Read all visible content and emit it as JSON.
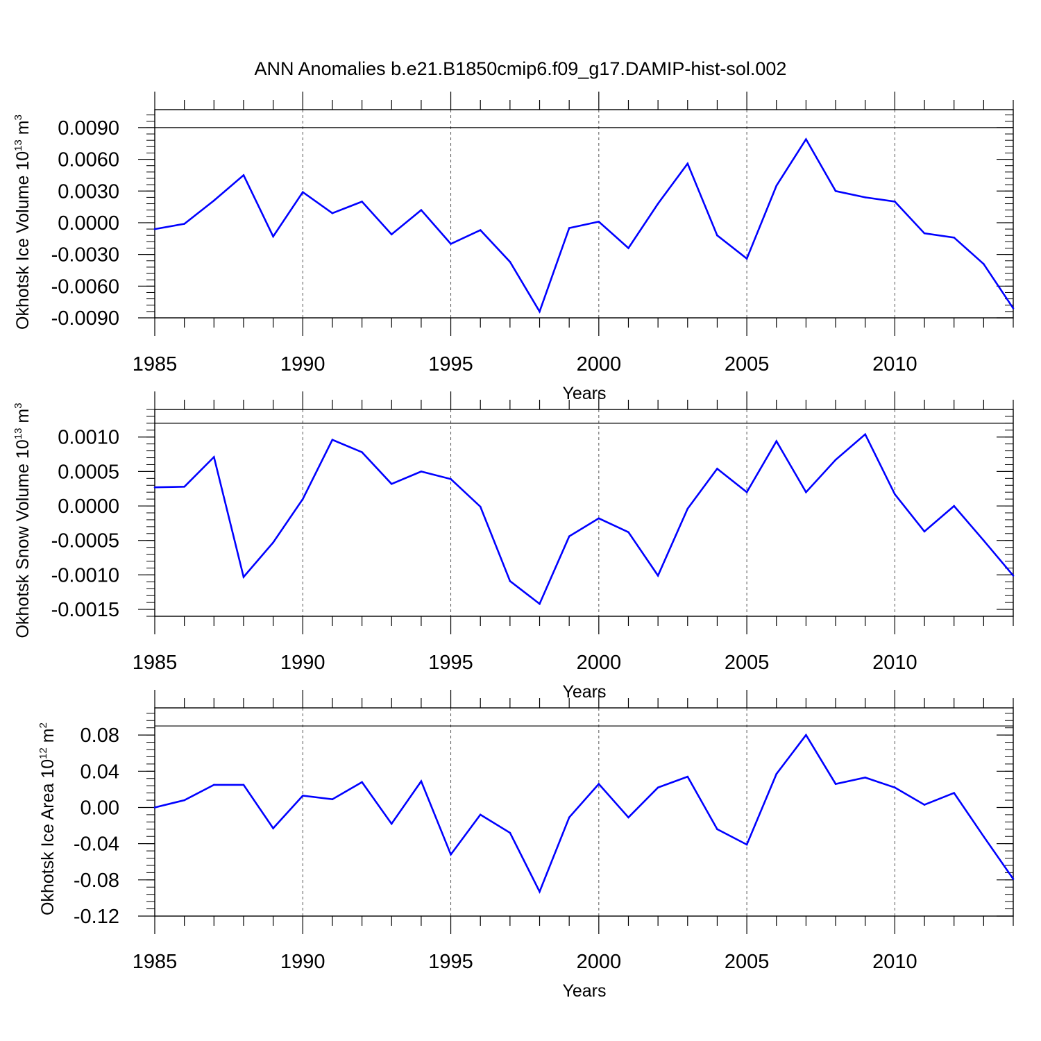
{
  "title": "ANN Anomalies b.e21.B1850cmip6.f09_g17.DAMIP-hist-sol.002",
  "line_color": "#0000ff",
  "chart_data": [
    {
      "type": "line",
      "ylabel": {
        "base": "Okhotsk Ice Volume 10",
        "sup": "13",
        "mid": " m",
        "sup2": "3"
      },
      "xlabel": "Years",
      "xlim": [
        1985,
        2014
      ],
      "ylim": [
        -0.009,
        0.0107
      ],
      "yticks": [
        -0.009,
        -0.006,
        -0.003,
        0.0,
        0.003,
        0.006,
        0.009
      ],
      "ytick_labels": [
        "-0.0090",
        "-0.0060",
        "-0.0030",
        "0.0000",
        "0.0030",
        "0.0060",
        "0.0090"
      ],
      "yminor_step": 0.0006,
      "xticks": [
        1985,
        1990,
        1995,
        2000,
        2005,
        2010
      ],
      "xtick_labels": [
        "1985",
        "1990",
        "1995",
        "2000",
        "2005",
        "2010"
      ],
      "vgrid": [
        1990,
        1995,
        2000,
        2005,
        2010
      ],
      "hgrid": [
        0.009
      ],
      "x": [
        1985,
        1986,
        1987,
        1988,
        1989,
        1990,
        1991,
        1992,
        1993,
        1994,
        1995,
        1996,
        1997,
        1998,
        1999,
        2000,
        2001,
        2002,
        2003,
        2004,
        2005,
        2006,
        2007,
        2008,
        2009,
        2010,
        2011,
        2012,
        2013,
        2014
      ],
      "values": [
        -0.0006,
        -0.0001,
        0.0021,
        0.0045,
        -0.0013,
        0.0029,
        0.0009,
        0.002,
        -0.0011,
        0.0012,
        -0.002,
        -0.0007,
        -0.0037,
        -0.0084,
        -0.0005,
        0.0001,
        -0.0024,
        0.0018,
        0.0056,
        -0.0012,
        -0.0034,
        0.0035,
        0.0079,
        0.003,
        0.0024,
        0.002,
        -0.001,
        -0.0014,
        -0.0039,
        -0.0081
      ]
    },
    {
      "type": "line",
      "ylabel": {
        "base": "Okhotsk Snow Volume 10",
        "sup": "13",
        "mid": " m",
        "sup2": "3"
      },
      "xlabel": "Years",
      "xlim": [
        1985,
        2014
      ],
      "ylim": [
        -0.0016,
        0.0014
      ],
      "yticks": [
        -0.0015,
        -0.001,
        -0.0005,
        0.0,
        0.0005,
        0.001
      ],
      "ytick_labels": [
        "-0.0015",
        "-0.0010",
        "-0.0005",
        "0.0000",
        "0.0005",
        "0.0010"
      ],
      "yminor_step": 0.0001,
      "xticks": [
        1985,
        1990,
        1995,
        2000,
        2005,
        2010
      ],
      "xtick_labels": [
        "1985",
        "1990",
        "1995",
        "2000",
        "2005",
        "2010"
      ],
      "vgrid": [
        1990,
        1995,
        2000,
        2005,
        2010
      ],
      "hgrid": [
        0.0012
      ],
      "x": [
        1985,
        1986,
        1987,
        1988,
        1989,
        1990,
        1991,
        1992,
        1993,
        1994,
        1995,
        1996,
        1997,
        1998,
        1999,
        2000,
        2001,
        2002,
        2003,
        2004,
        2005,
        2006,
        2007,
        2008,
        2009,
        2010,
        2011,
        2012,
        2013,
        2014
      ],
      "values": [
        0.00027,
        0.00028,
        0.00071,
        -0.00103,
        -0.00053,
        0.0001,
        0.00096,
        0.00078,
        0.00032,
        0.0005,
        0.00039,
        -1e-05,
        -0.00109,
        -0.00142,
        -0.00044,
        -0.00018,
        -0.00038,
        -0.00101,
        -4e-05,
        0.00054,
        0.0002,
        0.00094,
        0.0002,
        0.00067,
        0.00104,
        0.00017,
        -0.00037,
        0.0,
        -0.0005,
        -0.00101
      ]
    },
    {
      "type": "line",
      "ylabel": {
        "base": "Okhotsk Ice Area 10",
        "sup": "12",
        "mid": " m",
        "sup2": "2"
      },
      "xlabel": "Years",
      "xlim": [
        1985,
        2014
      ],
      "ylim": [
        -0.12,
        0.11
      ],
      "yticks": [
        -0.12,
        -0.08,
        -0.04,
        0.0,
        0.04,
        0.08
      ],
      "ytick_labels": [
        "-0.12",
        "-0.08",
        "-0.04",
        "0.00",
        "0.04",
        "0.08"
      ],
      "yminor_step": 0.008,
      "xticks": [
        1985,
        1990,
        1995,
        2000,
        2005,
        2010
      ],
      "xtick_labels": [
        "1985",
        "1990",
        "1995",
        "2000",
        "2005",
        "2010"
      ],
      "vgrid": [
        1990,
        1995,
        2000,
        2005,
        2010
      ],
      "hgrid": [
        0.09
      ],
      "x": [
        1985,
        1986,
        1987,
        1988,
        1989,
        1990,
        1991,
        1992,
        1993,
        1994,
        1995,
        1996,
        1997,
        1998,
        1999,
        2000,
        2001,
        2002,
        2003,
        2004,
        2005,
        2006,
        2007,
        2008,
        2009,
        2010,
        2011,
        2012,
        2013,
        2014
      ],
      "values": [
        0.0,
        0.008,
        0.025,
        0.025,
        -0.023,
        0.013,
        0.009,
        0.028,
        -0.018,
        0.029,
        -0.052,
        -0.008,
        -0.028,
        -0.093,
        -0.011,
        0.026,
        -0.011,
        0.022,
        0.034,
        -0.024,
        -0.041,
        0.037,
        0.08,
        0.026,
        0.033,
        0.022,
        0.003,
        0.016,
        -0.032,
        -0.079
      ]
    }
  ]
}
